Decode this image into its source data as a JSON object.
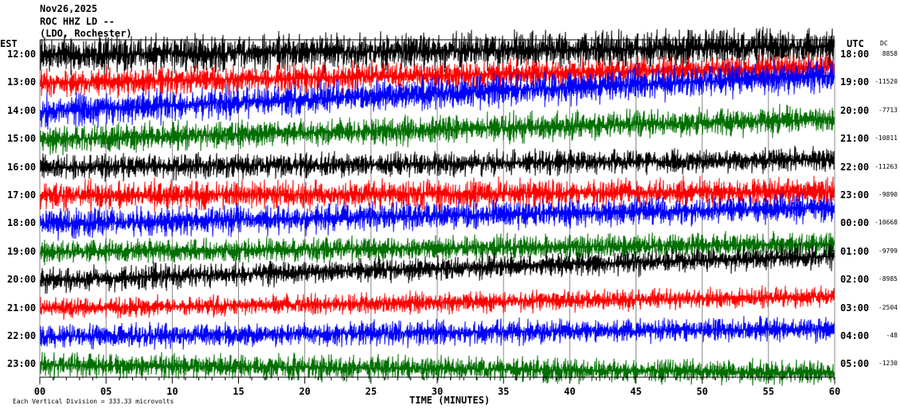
{
  "header": {
    "date": "Nov26,2025",
    "station": "ROC HHZ LD --",
    "location": "(LDO, Rochester)"
  },
  "chart_data": {
    "type": "line",
    "title": "Nov26,2025",
    "left_axis_title": "EST",
    "right_axis_title": "UTC",
    "dc_title": "DC",
    "xlabel": "TIME (MINUTES)",
    "xlim": [
      0,
      60
    ],
    "x_tick_labels": [
      "00",
      "05",
      "10",
      "15",
      "20",
      "25",
      "30",
      "35",
      "40",
      "45",
      "50",
      "55",
      "60"
    ],
    "rows": [
      {
        "est": "12:00",
        "utc": "18:00",
        "dc": "8858",
        "color": "#000000"
      },
      {
        "est": "13:00",
        "utc": "19:00",
        "dc": "-11520",
        "color": "#ff0000"
      },
      {
        "est": "14:00",
        "utc": "20:00",
        "dc": "-7713",
        "color": "#0000ff"
      },
      {
        "est": "15:00",
        "utc": "21:00",
        "dc": "-10811",
        "color": "#007000"
      },
      {
        "est": "16:00",
        "utc": "22:00",
        "dc": "-11263",
        "color": "#000000"
      },
      {
        "est": "17:00",
        "utc": "23:00",
        "dc": "-9890",
        "color": "#ff0000"
      },
      {
        "est": "18:00",
        "utc": "00:00",
        "dc": "-10668",
        "color": "#0000ff"
      },
      {
        "est": "19:00",
        "utc": "01:00",
        "dc": "-9799",
        "color": "#007000"
      },
      {
        "est": "20:00",
        "utc": "02:00",
        "dc": "-8985",
        "color": "#000000"
      },
      {
        "est": "21:00",
        "utc": "03:00",
        "dc": "-2504",
        "color": "#ff0000"
      },
      {
        "est": "22:00",
        "utc": "04:00",
        "dc": "-48",
        "color": "#0000ff"
      },
      {
        "est": "23:00",
        "utc": "05:00",
        "dc": "-1230",
        "color": "#007000"
      }
    ],
    "scale_note": "Each Vertical Division =  333.33 microvolts",
    "grid": true
  }
}
